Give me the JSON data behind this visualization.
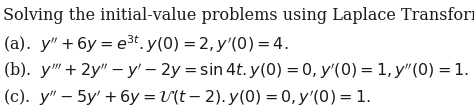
{
  "background_color": "#ffffff",
  "title_text": "Solving the initial-value problems using Laplace Transform.",
  "line_a": "(a).  $y'' + 6y = e^{3t}.y(0) = 2, y'(0) = 4.$",
  "line_b": "(b).  $y''' + 2y'' - y' - 2y = \\sin 4t.y(0) = 0, y'(0) = 1, y''(0) = 1.$",
  "line_c": "(c).  $y'' - 5y' + 6y = \\mathcal{U}(t-2).y(0) = 0, y'(0) = 1.$",
  "text_color": "#1a1a1a",
  "font_size_title": 11.5,
  "font_size_lines": 11.5
}
